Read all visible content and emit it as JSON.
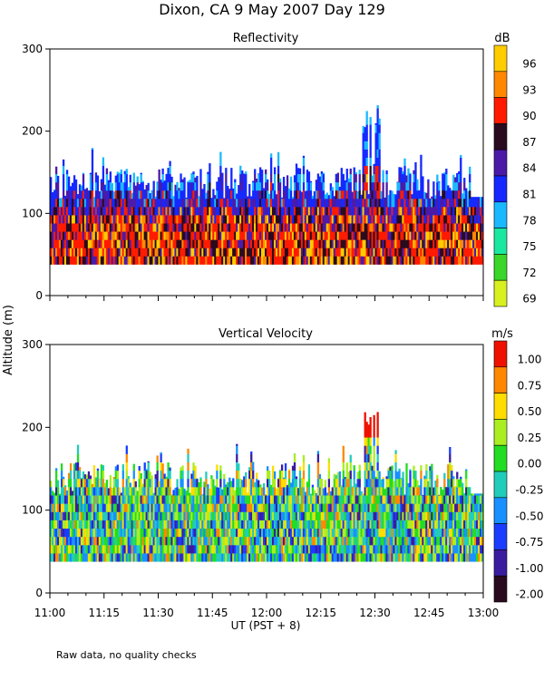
{
  "title": "Dixon, CA  9 May 2007  Day 129",
  "footnote": "Raw data, no quality checks",
  "chart_data": [
    {
      "type": "heatmap",
      "title": "Reflectivity",
      "colorbar_unit": "dB",
      "colorbar_labels": [
        "96",
        "93",
        "90",
        "87",
        "84",
        "81",
        "78",
        "75",
        "72",
        "69"
      ],
      "colorbar_colors": [
        "#ffcc00",
        "#ff8800",
        "#ff1a00",
        "#2a0a1e",
        "#4b1aa8",
        "#1428ff",
        "#1ab8ff",
        "#1ae8a0",
        "#3ad62a",
        "#d8f020"
      ],
      "xlabel": "",
      "ylabel": "Altitude (m)",
      "ylim": [
        0,
        300
      ],
      "y_ticks": [
        "300",
        "200",
        "100",
        "0"
      ],
      "grid": false
    },
    {
      "type": "heatmap",
      "title": "Vertical Velocity",
      "colorbar_unit": "m/s",
      "colorbar_labels": [
        "1.00",
        "0.75",
        "0.50",
        "0.25",
        "0.00",
        "-0.25",
        "-0.50",
        "-0.75",
        "-1.00",
        "-2.00"
      ],
      "colorbar_colors": [
        "#ee1100",
        "#ff8800",
        "#ffdd00",
        "#aaee22",
        "#22dd22",
        "#22ccbb",
        "#1890ff",
        "#1a3cff",
        "#3a1ca0",
        "#2a0a1e"
      ],
      "xlabel": "UT  (PST + 8)",
      "ylabel": "Altitude (m)",
      "ylim": [
        0,
        300
      ],
      "y_ticks": [
        "300",
        "200",
        "100",
        "0"
      ],
      "x_ticks": [
        "11:00",
        "11:15",
        "11:30",
        "11:45",
        "12:00",
        "12:15",
        "12:30",
        "12:45",
        "13:00"
      ],
      "grid": false
    }
  ]
}
